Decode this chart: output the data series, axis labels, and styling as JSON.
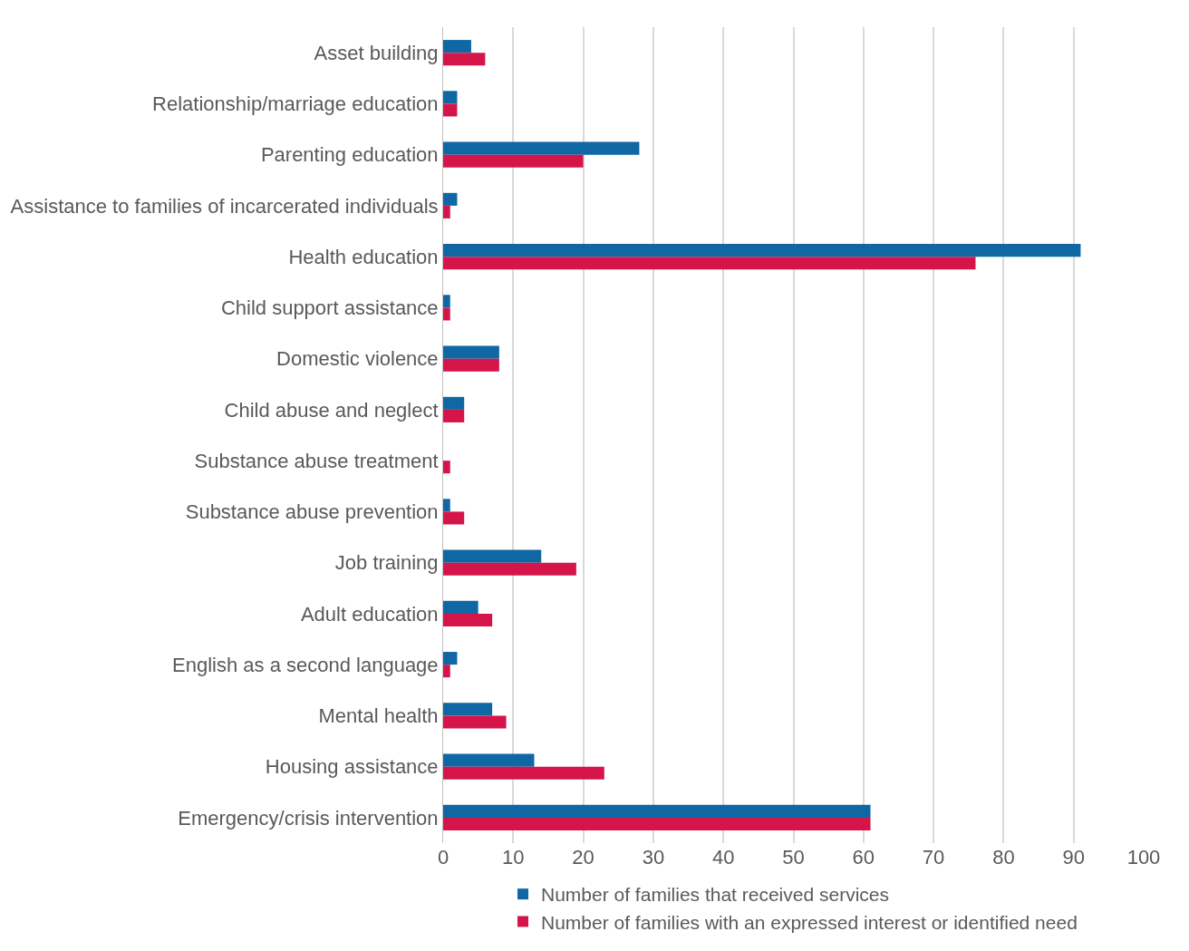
{
  "chart_data": {
    "type": "bar",
    "orientation": "horizontal",
    "categories": [
      "Asset building",
      "Relationship/marriage education",
      "Parenting education",
      "Assistance to families of incarcerated individuals",
      "Health education",
      "Child support assistance",
      "Domestic violence",
      "Child abuse and neglect",
      "Substance abuse treatment",
      "Substance abuse prevention",
      "Job training",
      "Adult education",
      "English as a second language",
      "Mental health",
      "Housing assistance",
      "Emergency/crisis intervention"
    ],
    "series": [
      {
        "name": "Number of families that received services",
        "color": "#0f67a4",
        "values": [
          4,
          2,
          28,
          2,
          91,
          1,
          8,
          3,
          0,
          1,
          14,
          5,
          2,
          7,
          13,
          61
        ]
      },
      {
        "name": "Number of families with an expressed interest or identified need",
        "color": "#d5154a",
        "values": [
          6,
          2,
          20,
          1,
          76,
          1,
          8,
          3,
          1,
          3,
          19,
          7,
          1,
          9,
          23,
          61
        ]
      }
    ],
    "xlim": [
      0,
      100
    ],
    "xticks": [
      0,
      10,
      20,
      30,
      40,
      50,
      60,
      70,
      80,
      90,
      100
    ],
    "grid": "x",
    "legend": "bottom"
  }
}
